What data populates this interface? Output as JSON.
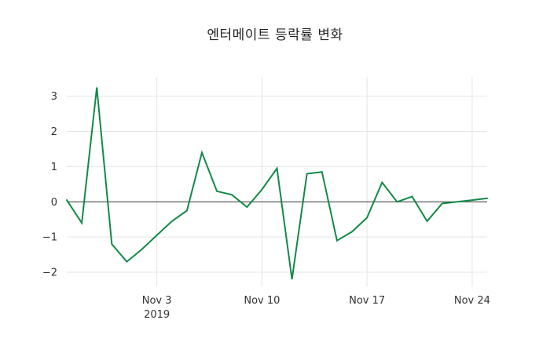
{
  "title": "엔터메이트 등락률 변화",
  "chart_data": {
    "type": "line",
    "title": "엔터메이트 등락률 변화",
    "x": [
      "Oct 28",
      "Oct 29",
      "Oct 30",
      "Oct 31",
      "Nov 1",
      "Nov 2",
      "Nov 3",
      "Nov 4",
      "Nov 5",
      "Nov 6",
      "Nov 7",
      "Nov 8",
      "Nov 9",
      "Nov 10",
      "Nov 11",
      "Nov 12",
      "Nov 13",
      "Nov 14",
      "Nov 15",
      "Nov 16",
      "Nov 17",
      "Nov 18",
      "Nov 19",
      "Nov 20",
      "Nov 21",
      "Nov 22",
      "Nov 23",
      "Nov 24",
      "Nov 25"
    ],
    "values": [
      0.05,
      -0.6,
      3.25,
      -1.2,
      -1.7,
      -1.35,
      -0.95,
      -0.55,
      -0.25,
      1.4,
      0.3,
      0.2,
      -0.15,
      0.35,
      0.95,
      -2.2,
      0.8,
      0.85,
      -1.1,
      -0.85,
      -0.45,
      0.55,
      0.0,
      0.15,
      -0.55,
      -0.05,
      0.0,
      0.05,
      0.1
    ],
    "x_ticks": [
      {
        "index": 6,
        "label": "Nov 3",
        "sublabel": "2019"
      },
      {
        "index": 13,
        "label": "Nov 10",
        "sublabel": ""
      },
      {
        "index": 20,
        "label": "Nov 17",
        "sublabel": ""
      },
      {
        "index": 27,
        "label": "Nov 24",
        "sublabel": ""
      }
    ],
    "y_ticks": [
      {
        "value": 3,
        "label": "3"
      },
      {
        "value": 2,
        "label": "2"
      },
      {
        "value": 1,
        "label": "1"
      },
      {
        "value": 0,
        "label": "0"
      },
      {
        "value": -1,
        "label": "−1"
      },
      {
        "value": -2,
        "label": "−2"
      }
    ],
    "ylim": [
      -2.4,
      3.55
    ],
    "grid": true,
    "zero_line": true,
    "line_color": "#128a47",
    "grid_color": "#e5e5e5",
    "zero_line_color": "#3a3a3a",
    "tick_color": "#333333",
    "background": "#ffffff",
    "legend": "none"
  }
}
